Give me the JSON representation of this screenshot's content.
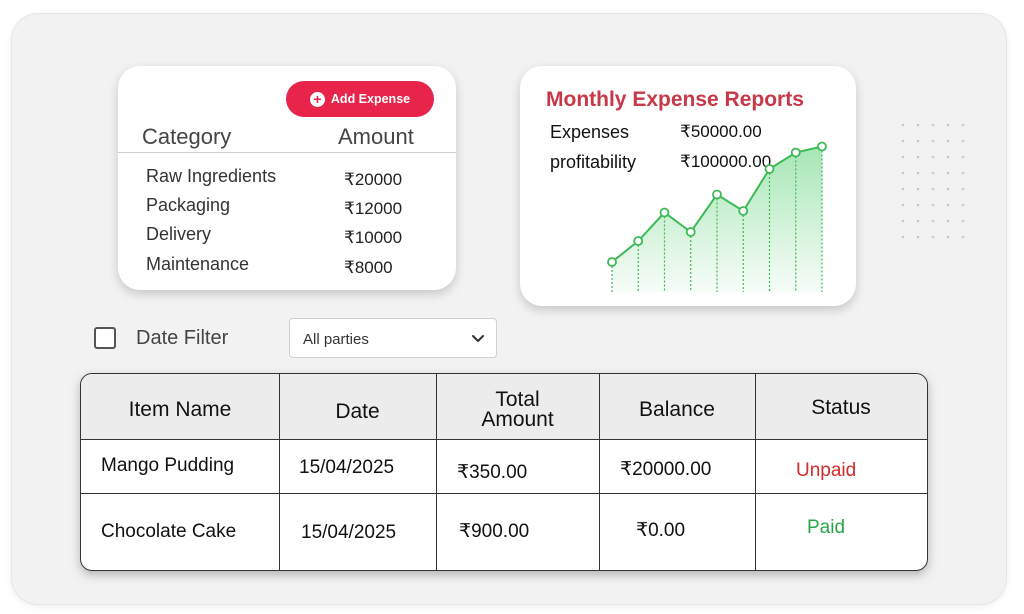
{
  "expense_card": {
    "add_button_label": "Add Expense",
    "headers": {
      "category": "Category",
      "amount": "Amount"
    },
    "rows": [
      {
        "category": "Raw Ingredients",
        "amount": "₹20000"
      },
      {
        "category": "Packaging",
        "amount": "₹12000"
      },
      {
        "category": "Delivery",
        "amount": "₹10000"
      },
      {
        "category": "Maintenance",
        "amount": "₹8000"
      }
    ]
  },
  "report_card": {
    "title": "Monthly Expense Reports",
    "expenses_label": "Expenses",
    "expenses_value": "₹50000.00",
    "profitability_label": "profitability",
    "profitability_value": "₹100000.00",
    "accent_color": "#c93848",
    "line_color": "#3cba54"
  },
  "chart_data": {
    "type": "line",
    "title": "",
    "xlabel": "",
    "ylabel": "",
    "x": [
      1,
      2,
      3,
      4,
      5,
      6,
      7,
      8,
      9
    ],
    "values": [
      20,
      34,
      53,
      40,
      65,
      54,
      82,
      93,
      97
    ],
    "ylim": [
      0,
      100
    ],
    "grid": false
  },
  "filter": {
    "date_filter_label": "Date Filter",
    "party_select_value": "All parties",
    "checkbox_checked": false
  },
  "table": {
    "headers": {
      "item_name": "Item Name",
      "date": "Date",
      "total_amount_line1": "Total",
      "total_amount_line2": "Amount",
      "balance": "Balance",
      "status": "Status"
    },
    "rows": [
      {
        "item": "Mango Pudding",
        "date": "15/04/2025",
        "total": "₹350.00",
        "balance": "₹20000.00",
        "status": "Unpaid"
      },
      {
        "item": "Chocolate Cake",
        "date": "15/04/2025",
        "total": "₹900.00",
        "balance": "₹0.00",
        "status": "Paid"
      }
    ],
    "status_colors": {
      "Unpaid": "#d42a2a",
      "Paid": "#2aa64a"
    }
  }
}
